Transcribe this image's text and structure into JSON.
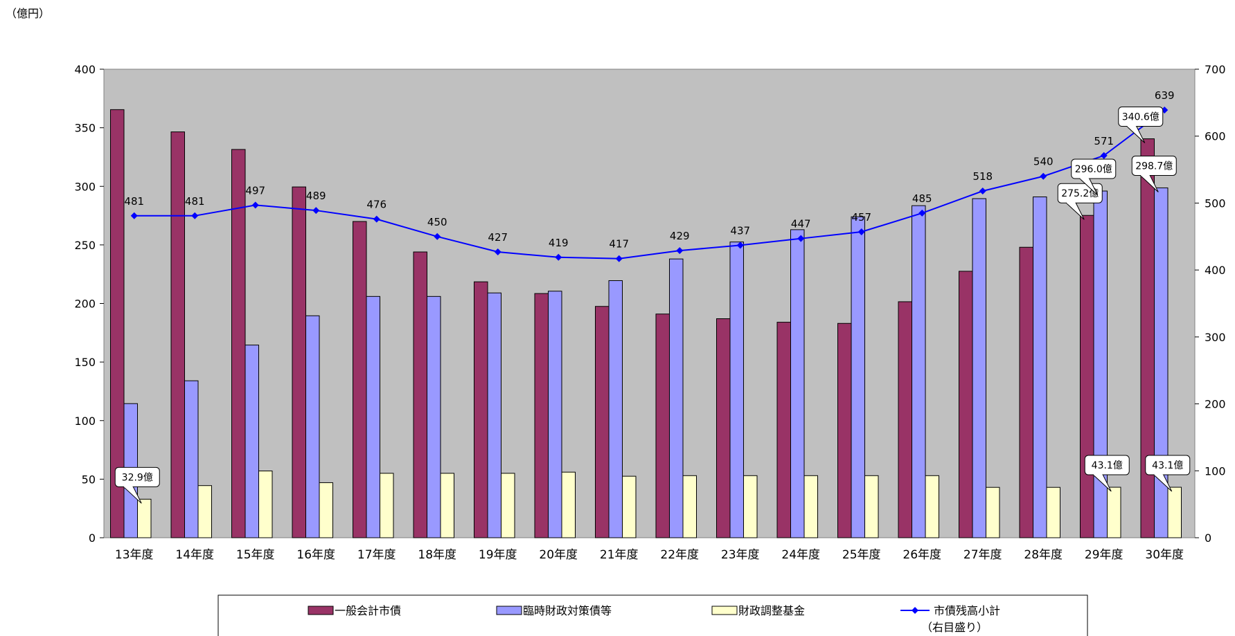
{
  "chart_data": {
    "type": "bar",
    "unit_label": "（億円）",
    "categories": [
      "13年度",
      "14年度",
      "15年度",
      "16年度",
      "17年度",
      "18年度",
      "19年度",
      "20年度",
      "21年度",
      "22年度",
      "23年度",
      "24年度",
      "25年度",
      "26年度",
      "27年度",
      "28年度",
      "29年度",
      "30年度"
    ],
    "series": [
      {
        "name": "一般会計市債",
        "color": "#993366",
        "values": [
          365.5,
          346.5,
          331.5,
          299.5,
          270,
          244,
          218.5,
          208.5,
          197.5,
          191,
          187,
          184,
          183,
          201.5,
          227.5,
          248,
          275.2,
          340.6
        ]
      },
      {
        "name": "臨時財政対策債等",
        "color": "#9999ff",
        "values": [
          114.5,
          134,
          164.5,
          189.5,
          206,
          206,
          209,
          210.5,
          219.5,
          238,
          252.5,
          263,
          274,
          283.5,
          289.5,
          291,
          296.0,
          298.7
        ]
      },
      {
        "name": "財政調整基金",
        "color": "#ffffcc",
        "values": [
          32.9,
          44.5,
          57,
          47,
          55,
          55,
          55,
          56,
          52.5,
          53,
          53,
          53,
          53,
          53,
          43,
          43,
          43.1,
          43.1
        ]
      },
      {
        "name": "市債残高小計",
        "name2": "（右目盛り）",
        "color": "#0000ff",
        "axis": "right",
        "values": [
          481,
          481,
          497,
          489,
          476,
          450,
          427,
          419,
          417,
          429,
          437,
          447,
          457,
          485,
          518,
          540,
          571,
          639
        ],
        "labels": [
          "481",
          "481",
          "497",
          "489",
          "476",
          "450",
          "427",
          "419",
          "417",
          "429",
          "437",
          "447",
          "457",
          "485",
          "518",
          "540",
          "571",
          "639"
        ]
      }
    ],
    "left_axis": {
      "min": 0,
      "max": 400,
      "ticks": [
        "0",
        "50",
        "100",
        "150",
        "200",
        "250",
        "300",
        "350",
        "400"
      ]
    },
    "right_axis": {
      "min": 0,
      "max": 700,
      "ticks": [
        "0",
        "100",
        "200",
        "300",
        "400",
        "500",
        "600",
        "700"
      ]
    },
    "plot_background": "#c0c0c0",
    "callouts": [
      {
        "text": "32.9億",
        "category": 0,
        "series": 2
      },
      {
        "text": "275.2億",
        "category": 16,
        "series": 0
      },
      {
        "text": "296.0億",
        "category": 16,
        "series": 1
      },
      {
        "text": "43.1億",
        "category": 16,
        "series": 2
      },
      {
        "text": "340.6億",
        "category": 17,
        "series": 0
      },
      {
        "text": "298.7億",
        "category": 17,
        "series": 1
      },
      {
        "text": "43.1億",
        "category": 17,
        "series": 2
      }
    ],
    "legend": {
      "position": "bottom"
    }
  }
}
